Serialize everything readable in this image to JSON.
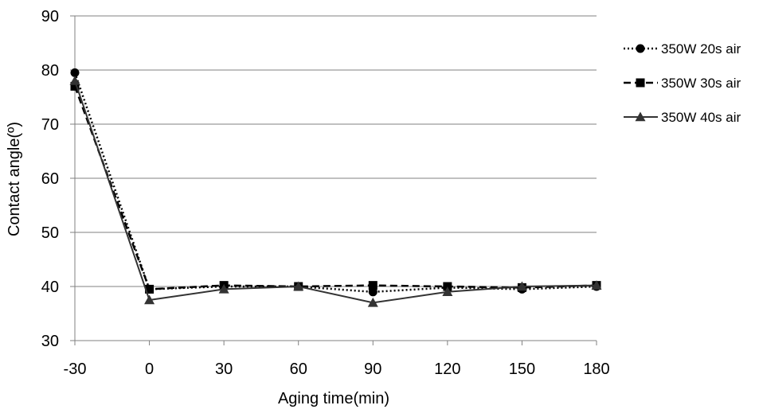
{
  "chart_data": {
    "type": "line",
    "title": "",
    "xlabel": "Aging time(min)",
    "ylabel": "Contact angle(º)",
    "x": [
      -30,
      0,
      30,
      60,
      90,
      120,
      150,
      180
    ],
    "x_tick_labels": [
      "-30",
      "0",
      "30",
      "60",
      "90",
      "120",
      "150",
      "180"
    ],
    "y_tick_labels": [
      "30",
      "40",
      "50",
      "60",
      "70",
      "80",
      "90"
    ],
    "ylim": [
      30,
      90
    ],
    "grid": "horizontal",
    "legend_position": "right",
    "series": [
      {
        "name": "350W 20s air",
        "line_style": "dotted",
        "marker": "circle",
        "color": "#000000",
        "values": [
          79.5,
          39.5,
          40.0,
          40.0,
          39.0,
          39.8,
          39.5,
          40.0
        ]
      },
      {
        "name": "350W 30s air",
        "line_style": "dashed",
        "marker": "square",
        "color": "#000000",
        "values": [
          77.0,
          39.5,
          40.2,
          40.0,
          40.2,
          40.0,
          39.8,
          40.2
        ]
      },
      {
        "name": "350W 40s air",
        "line_style": "solid",
        "marker": "triangle",
        "color": "#333333",
        "values": [
          78.0,
          37.5,
          39.5,
          40.0,
          37.0,
          39.0,
          40.0,
          40.2
        ]
      }
    ]
  }
}
